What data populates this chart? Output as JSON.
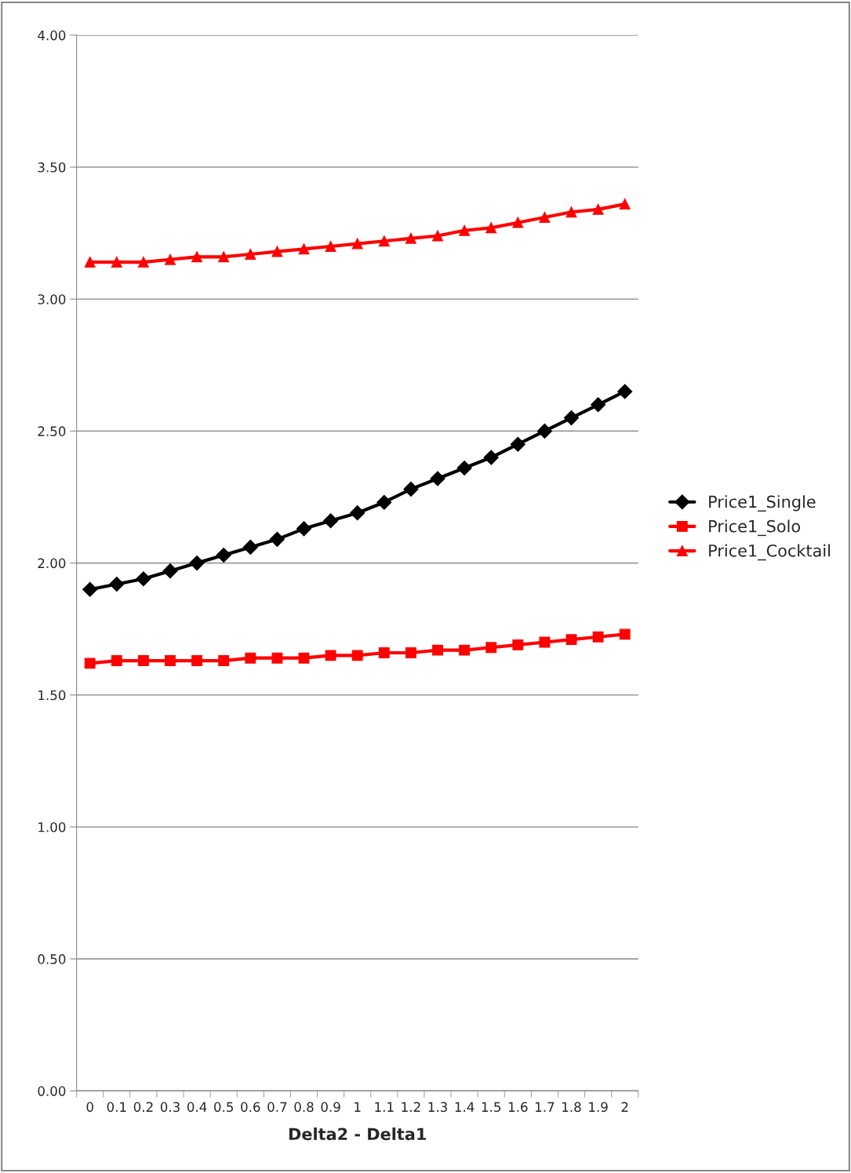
{
  "chart_data": {
    "type": "line",
    "xlabel": "Delta2 - Delta1",
    "categories": [
      "0",
      "0.1",
      "0.2",
      "0.3",
      "0.4",
      "0.5",
      "0.6",
      "0.7",
      "0.8",
      "0.9",
      "1",
      "1.1",
      "1.2",
      "1.3",
      "1.4",
      "1.5",
      "1.6",
      "1.7",
      "1.8",
      "1.9",
      "2"
    ],
    "series": [
      {
        "name": "Price1_Single",
        "color": "#000000",
        "marker": "diamond",
        "values": [
          1.9,
          1.92,
          1.94,
          1.97,
          2.0,
          2.03,
          2.06,
          2.09,
          2.13,
          2.16,
          2.19,
          2.23,
          2.28,
          2.32,
          2.36,
          2.4,
          2.45,
          2.5,
          2.55,
          2.6,
          2.65
        ]
      },
      {
        "name": "Price1_Solo",
        "color": "#ff0000",
        "marker": "square",
        "values": [
          1.62,
          1.63,
          1.63,
          1.63,
          1.63,
          1.63,
          1.64,
          1.64,
          1.64,
          1.65,
          1.65,
          1.66,
          1.66,
          1.67,
          1.67,
          1.68,
          1.69,
          1.7,
          1.71,
          1.72,
          1.73
        ]
      },
      {
        "name": "Price1_Cocktail",
        "color": "#ff0000",
        "marker": "triangle",
        "values": [
          3.14,
          3.14,
          3.14,
          3.15,
          3.16,
          3.16,
          3.17,
          3.18,
          3.19,
          3.2,
          3.21,
          3.22,
          3.23,
          3.24,
          3.26,
          3.27,
          3.29,
          3.31,
          3.33,
          3.34,
          3.36
        ]
      }
    ],
    "ylim": [
      0,
      4
    ],
    "yticks": [
      {
        "value": 0,
        "label": "0.00"
      },
      {
        "value": 0.5,
        "label": "0.50"
      },
      {
        "value": 1,
        "label": "1.00"
      },
      {
        "value": 1.5,
        "label": "1.50"
      },
      {
        "value": 2,
        "label": "2.00"
      },
      {
        "value": 2.5,
        "label": "2.50"
      },
      {
        "value": 3,
        "label": "3.00"
      },
      {
        "value": 3.5,
        "label": "3.50"
      },
      {
        "value": 4,
        "label": "4.00"
      }
    ],
    "grid": "y",
    "legend": "right"
  }
}
